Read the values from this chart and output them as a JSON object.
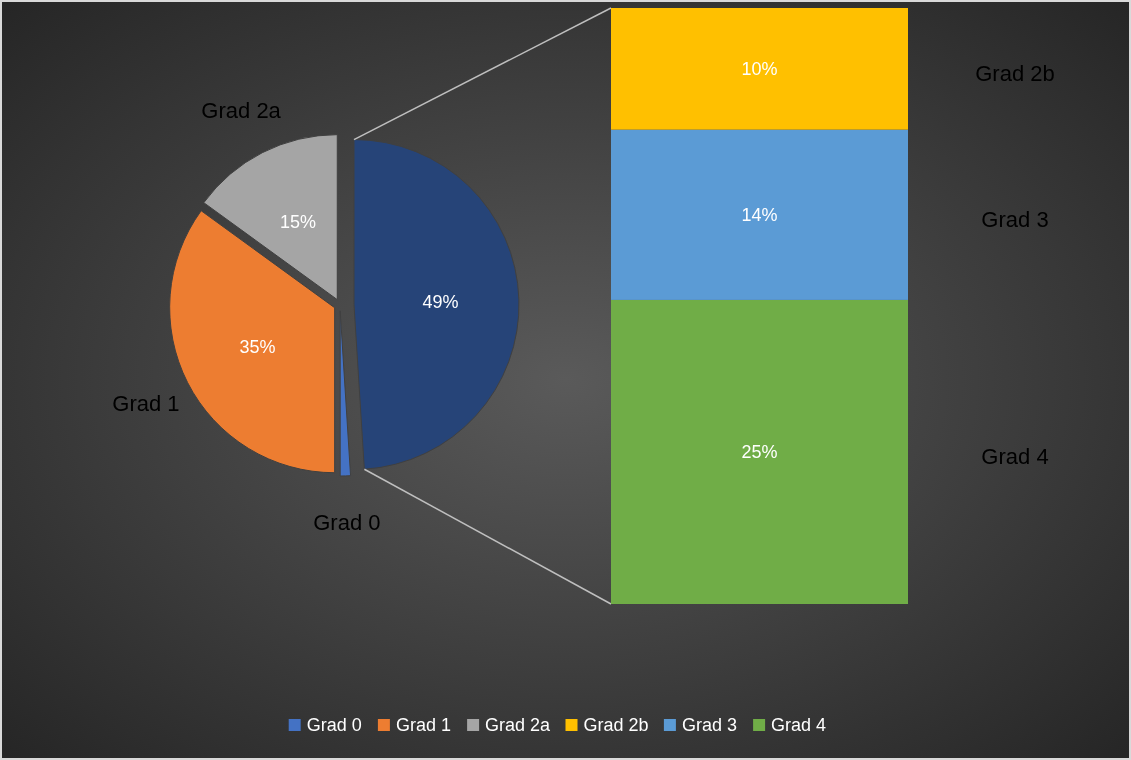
{
  "chart_data": [
    {
      "type": "pie",
      "categories": [
        "Grad 0",
        "Grad 1",
        "Grad 2a",
        null
      ],
      "values": [
        1,
        35,
        15,
        49
      ],
      "colors": [
        "#4472c4",
        "#ed7d31",
        "#a5a5a5",
        "#264478"
      ],
      "value_labels": [
        null,
        "35%",
        "15%",
        "49%"
      ],
      "legend": "bottom"
    },
    {
      "type": "bar",
      "stacked": true,
      "categories": [
        null
      ],
      "legend": "bottom",
      "series": [
        {
          "name": "Grad 4",
          "color": "#70ad47",
          "values": [
            25
          ],
          "value_labels": [
            "25%"
          ]
        },
        {
          "name": "Grad 3",
          "color": "#5b9bd5",
          "values": [
            14
          ],
          "value_labels": [
            "14%"
          ]
        },
        {
          "name": "Grad 2b",
          "color": "#ffc000",
          "values": [
            10
          ],
          "value_labels": [
            "10%"
          ]
        }
      ]
    }
  ]
}
